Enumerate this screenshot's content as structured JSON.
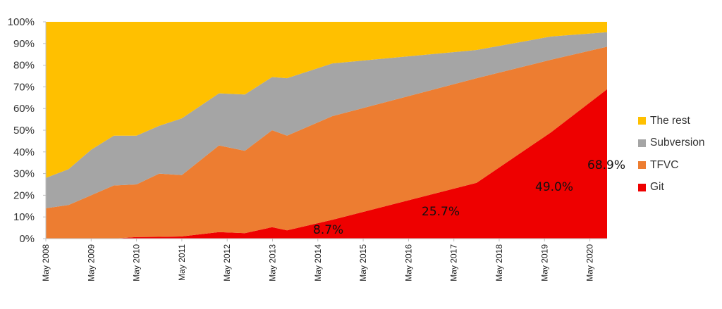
{
  "chart_data": {
    "type": "area",
    "stacked": true,
    "percent_stacked": true,
    "title": "",
    "xlabel": "",
    "ylabel": "",
    "ylim": [
      0,
      100
    ],
    "y_ticks": [
      "0%",
      "10%",
      "20%",
      "30%",
      "40%",
      "50%",
      "60%",
      "70%",
      "80%",
      "90%",
      "100%"
    ],
    "x_ticks": [
      "May 2008",
      "May 2009",
      "May 2010",
      "May 2011",
      "May 2012",
      "May 2013",
      "May 2014",
      "May 2015",
      "May 2016",
      "May 2017",
      "May 2018",
      "May 2019",
      "May 2020"
    ],
    "x_years": [
      2008.33,
      2008.83,
      2009.33,
      2009.83,
      2010.33,
      2010.83,
      2011.33,
      2012.15,
      2012.72,
      2013.32,
      2013.65,
      2014.65,
      2017.83,
      2019.47,
      2020.72
    ],
    "series": [
      {
        "name": "Git",
        "color": "#EE0000",
        "values": [
          0,
          0,
          0,
          0,
          0.7,
          0.8,
          1.0,
          3.0,
          2.5,
          5.3,
          3.8,
          8.7,
          25.7,
          49.0,
          68.9
        ]
      },
      {
        "name": "TFVC",
        "color": "#ED7D31",
        "values": [
          14.0,
          15.5,
          20.0,
          24.5,
          24.3,
          29.2,
          28.3,
          40.0,
          38.0,
          44.7,
          43.7,
          47.8,
          48.3,
          33.5,
          19.6
        ]
      },
      {
        "name": "Subversion",
        "color": "#A5A5A5",
        "values": [
          14.0,
          16.5,
          21.0,
          23.0,
          22.5,
          22.0,
          26.2,
          24.0,
          26.0,
          24.5,
          26.5,
          24.3,
          13.0,
          10.7,
          6.7
        ]
      },
      {
        "name": "The rest",
        "color": "#FFC000",
        "values": [
          72.0,
          68.0,
          59.0,
          52.5,
          52.5,
          48.0,
          44.5,
          33.0,
          33.5,
          25.5,
          26.0,
          19.2,
          13.0,
          6.8,
          4.8
        ]
      }
    ],
    "annotations": [
      {
        "text": "8.7%",
        "series": "Git",
        "x": "May 2014"
      },
      {
        "text": "25.7%",
        "series": "Git",
        "x": "2017"
      },
      {
        "text": "49.0%",
        "series": "Git",
        "x": "2019"
      },
      {
        "text": "68.9%",
        "series": "Git",
        "x": "2020"
      }
    ],
    "legend": {
      "position": "right",
      "entries": [
        {
          "label": "The rest",
          "color": "#FFC000"
        },
        {
          "label": "Subversion",
          "color": "#A5A5A5"
        },
        {
          "label": "TFVC",
          "color": "#ED7D31"
        },
        {
          "label": "Git",
          "color": "#EE0000"
        }
      ]
    },
    "grid": false
  },
  "labels": {
    "git_2014": "8.7%",
    "git_2017": "25.7%",
    "git_2019": "49.0%",
    "git_2020": "68.9%"
  },
  "legend": {
    "rest": "The rest",
    "svn": "Subversion",
    "tfvc": "TFVC",
    "git": "Git"
  },
  "colors": {
    "rest": "#FFC000",
    "svn": "#A5A5A5",
    "tfvc": "#ED7D31",
    "git": "#EE0000"
  }
}
